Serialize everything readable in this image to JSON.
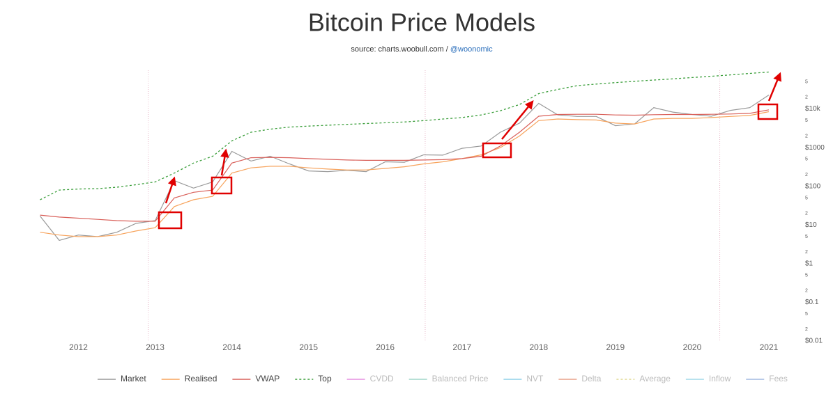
{
  "chart_data": {
    "type": "line",
    "title": "Bitcoin Price Models",
    "subtitle": "source: charts.woobull.com / ",
    "subtitle_link": "@woonomic",
    "log_scale": true,
    "grid": false,
    "legend_position": "bottom",
    "xlim": [
      2011.45,
      2021.2
    ],
    "xticks": [
      2012,
      2013,
      2014,
      2015,
      2016,
      2017,
      2018,
      2019,
      2020,
      2021
    ],
    "ylim": [
      0.01,
      100000
    ],
    "yticks": [
      {
        "value": 0.01,
        "label": "$0.01"
      },
      {
        "value": 0.02,
        "label": "2"
      },
      {
        "value": 0.05,
        "label": "5"
      },
      {
        "value": 0.1,
        "label": "$0.1"
      },
      {
        "value": 0.2,
        "label": "2"
      },
      {
        "value": 0.5,
        "label": "5"
      },
      {
        "value": 1,
        "label": "$1"
      },
      2,
      5,
      {
        "value": 10,
        "label": "$10"
      },
      {
        "value": 20,
        "label": "2"
      },
      {
        "value": 50,
        "label": "5"
      },
      {
        "value": 100,
        "label": "$100"
      },
      {
        "value": 200,
        "label": "2"
      },
      {
        "value": 500,
        "label": "5"
      },
      {
        "value": 1000,
        "label": "$1000"
      },
      {
        "value": 2000,
        "label": "2"
      },
      {
        "value": 5000,
        "label": "5"
      },
      {
        "value": 10000,
        "label": "$10k"
      },
      {
        "value": 20000,
        "label": "2"
      },
      {
        "value": 50000,
        "label": "5"
      }
    ],
    "halvings": [
      2012.91,
      2016.52,
      2020.36
    ],
    "halving_color": "#e8b8c8",
    "x": [
      2011.5,
      2011.75,
      2012.0,
      2012.25,
      2012.5,
      2012.75,
      2013.0,
      2013.25,
      2013.5,
      2013.75,
      2014.0,
      2014.25,
      2014.5,
      2014.75,
      2015.0,
      2015.25,
      2015.5,
      2015.75,
      2016.0,
      2016.25,
      2016.5,
      2016.75,
      2017.0,
      2017.25,
      2017.5,
      2017.75,
      2018.0,
      2018.25,
      2018.5,
      2018.75,
      2019.0,
      2019.25,
      2019.5,
      2019.75,
      2020.0,
      2020.25,
      2020.5,
      2020.75,
      2021.0
    ],
    "series": [
      {
        "name": "Market",
        "color": "#999999",
        "dash": false,
        "values": [
          17,
          4,
          5.5,
          5,
          6.5,
          11,
          13,
          140,
          90,
          130,
          800,
          450,
          600,
          380,
          250,
          240,
          260,
          240,
          430,
          420,
          650,
          640,
          960,
          1100,
          2500,
          4300,
          14000,
          7000,
          6400,
          6400,
          3700,
          4100,
          10800,
          8300,
          7200,
          6500,
          9200,
          10800,
          23000
        ]
      },
      {
        "name": "Realised",
        "color": "#f7a35c",
        "dash": false,
        "values": [
          6.5,
          5.5,
          5,
          5,
          5.5,
          7,
          8.5,
          30,
          45,
          55,
          220,
          300,
          330,
          330,
          300,
          280,
          265,
          265,
          290,
          320,
          380,
          430,
          520,
          650,
          1000,
          2000,
          5000,
          5500,
          5300,
          5200,
          4300,
          4100,
          5500,
          5700,
          5700,
          6000,
          6400,
          6800,
          8500
        ]
      },
      {
        "name": "VWAP",
        "color": "#d9605a",
        "dash": false,
        "values": [
          18,
          16,
          15,
          14,
          13,
          12.5,
          12.5,
          50,
          70,
          80,
          400,
          550,
          560,
          550,
          520,
          500,
          480,
          470,
          470,
          470,
          480,
          490,
          520,
          600,
          1100,
          2500,
          6500,
          7200,
          7300,
          7300,
          7000,
          6900,
          7100,
          7200,
          7200,
          7300,
          7400,
          7700,
          9500
        ]
      },
      {
        "name": "Top",
        "color": "#3a9e3a",
        "dash": true,
        "values": [
          45,
          80,
          85,
          87,
          95,
          110,
          130,
          220,
          400,
          600,
          1500,
          2500,
          3000,
          3400,
          3600,
          3800,
          4000,
          4200,
          4400,
          4600,
          5000,
          5500,
          6000,
          7000,
          9000,
          13000,
          25000,
          32000,
          40000,
          44000,
          48000,
          52000,
          56000,
          60000,
          65000,
          70000,
          76000,
          83000,
          90000
        ]
      }
    ],
    "legend_hidden": [
      {
        "name": "CVDD",
        "color": "#e58fe0"
      },
      {
        "name": "Balanced Price",
        "color": "#9fd6c8"
      },
      {
        "name": "NVT",
        "color": "#8fd0e8"
      },
      {
        "name": "Delta",
        "color": "#e8a088"
      },
      {
        "name": "Average",
        "color": "#e0d890"
      },
      {
        "name": "Inflow",
        "color": "#a0d8e8"
      },
      {
        "name": "Fees",
        "color": "#a0b8e0"
      }
    ]
  }
}
